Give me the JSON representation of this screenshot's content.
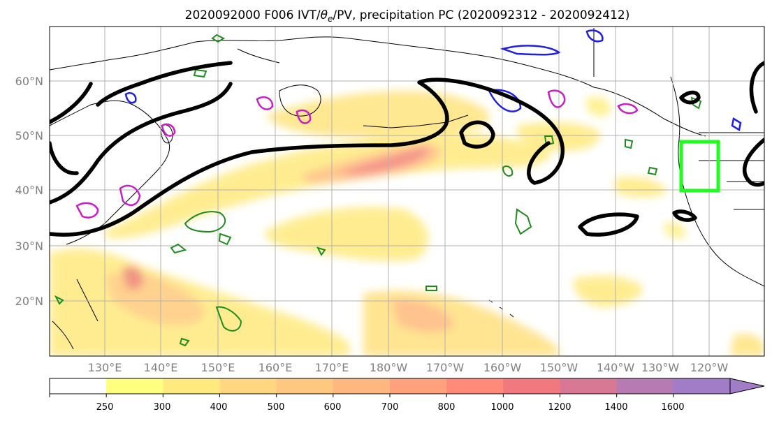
{
  "title": {
    "prefix": "2020092000 F006 IVT/",
    "theta": "θ",
    "theta_sub": "e",
    "suffix": "/PV, precipitation PC (2020092312 - 2020092412)"
  },
  "latitude_labels": [
    "60°N",
    "50°N",
    "40°N",
    "30°N",
    "20°N"
  ],
  "longitude_labels": [
    "130°E",
    "140°E",
    "150°E",
    "160°E",
    "170°E",
    "180°W",
    "170°W",
    "160°W",
    "150°W",
    "140°W",
    "130°W",
    "120°W"
  ],
  "colorbar": {
    "tick_labels": [
      "250",
      "300",
      "400",
      "500",
      "600",
      "700",
      "800",
      "1000",
      "1200",
      "1400",
      "1600"
    ],
    "colors": [
      "#ffffff",
      "#ffff80",
      "#ffea80",
      "#ffd780",
      "#ffc880",
      "#ffb780",
      "#ffa17c",
      "#ff8a7a",
      "#f0787e",
      "#d87895",
      "#b77ab3",
      "#a07dc6"
    ],
    "extend": "max"
  },
  "contour_colors": {
    "ivt_shading": "#ffd37a",
    "pv_line": "#000000",
    "theta_e_positive": "#1e8c1e",
    "theta_e_warm": "#c81ec8",
    "theta_e_cold": "#1e1ee6",
    "highlight_box": "#1eff1e"
  }
}
